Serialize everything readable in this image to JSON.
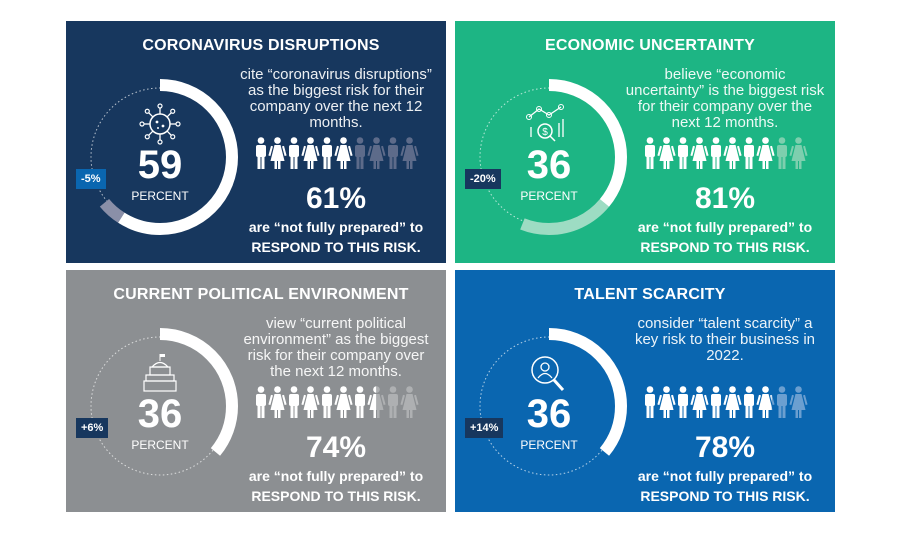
{
  "panels": [
    {
      "id": "coronavirus",
      "title": "CORONAVIRUS DISRUPTIONS",
      "value": 59,
      "value_text": "59",
      "unit": "PERCENT",
      "change": "-5%",
      "change_value": -5,
      "description": "cite “coronavirus disruptions” as the biggest risk for their company over the next 12 months.",
      "prepared_pct": "61%",
      "prepared_value": 61,
      "prepared_line1": "are “not fully prepared” to",
      "prepared_line2": "RESPOND TO THIS RISK.",
      "icon": "virus-icon",
      "bg": "#17375e",
      "badge_bg": "#0a66b0",
      "faded": "#8a8fa8",
      "people_off": "#5d6b8a"
    },
    {
      "id": "economic",
      "title": "ECONOMIC UNCERTAINTY",
      "value": 36,
      "value_text": "36",
      "unit": "PERCENT",
      "change": "-20%",
      "change_value": -20,
      "description": "believe “economic uncertainty” is the biggest risk for their company over the next 12 months.",
      "prepared_pct": "81%",
      "prepared_value": 81,
      "prepared_line1": "are “not fully prepared” to",
      "prepared_line2": "RESPOND TO THIS RISK.",
      "icon": "chart-dollar-icon",
      "bg": "#1db584",
      "badge_bg": "#17375e",
      "faded": "#9ddcc3",
      "people_off": "#7dcfae"
    },
    {
      "id": "political",
      "title": "CURRENT POLITICAL ENVIRONMENT",
      "value": 36,
      "value_text": "36",
      "unit": "PERCENT",
      "change": "+6%",
      "change_value": 6,
      "description": "view “current political environment” as the biggest risk for their company over the next 12 months.",
      "prepared_pct": "74%",
      "prepared_value": 74,
      "prepared_line1": "are “not fully prepared” to",
      "prepared_line2": "RESPOND TO THIS RISK.",
      "icon": "capitol-icon",
      "bg": "#8c8f92",
      "badge_bg": "#17375e",
      "faded": "#b5b7b9",
      "people_off": "#aeb0b2"
    },
    {
      "id": "talent",
      "title": "TALENT SCARCITY",
      "value": 36,
      "value_text": "36",
      "unit": "PERCENT",
      "change": "+14%",
      "change_value": 14,
      "description": "consider “talent scarcity” a key risk to their business in 2022.",
      "prepared_pct": "78%",
      "prepared_value": 78,
      "prepared_line1": "are “not fully prepared” to",
      "prepared_line2": "RESPOND TO THIS RISK.",
      "icon": "search-person-icon",
      "bg": "#0a66b0",
      "badge_bg": "#17375e",
      "faded": "#6b9fd0",
      "people_off": "#6b9fd0"
    }
  ]
}
